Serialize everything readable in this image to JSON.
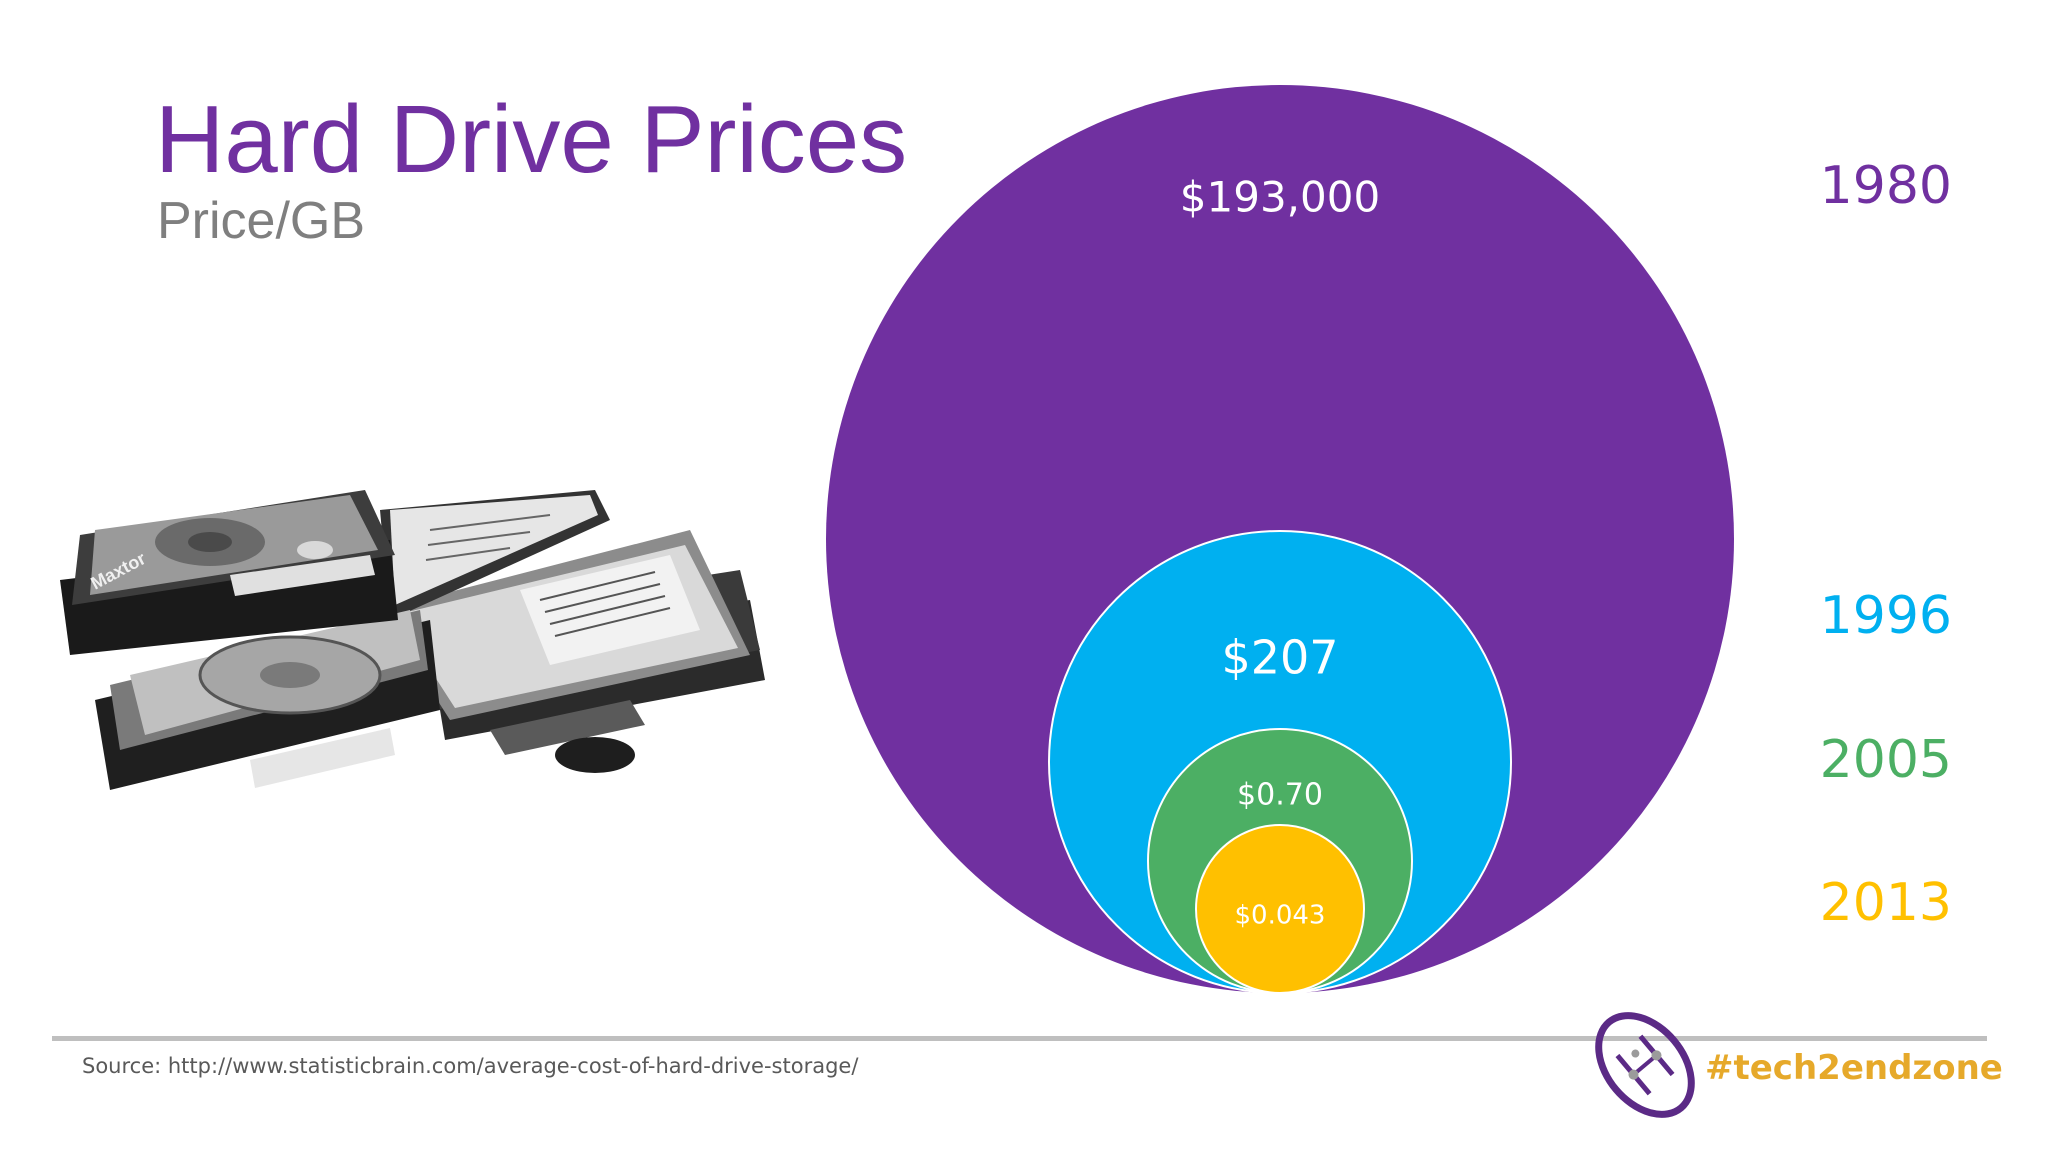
{
  "slide": {
    "title": "Hard Drive Prices",
    "subtitle": "Price/GB",
    "source": "Source: http://www.statisticbrain.com/average-cost-of-hard-drive-storage/",
    "hashtag": "#tech2endzone"
  },
  "chart_data": {
    "type": "nested-bubble",
    "title": "Hard Drive Prices",
    "subtitle": "Price/GB",
    "series": [
      {
        "year": "1980",
        "price_label": "$193,000",
        "color": "#7030a0"
      },
      {
        "year": "1996",
        "price_label": "$207",
        "color": "#00b0f0"
      },
      {
        "year": "2005",
        "price_label": "$0.70",
        "color": "#4caf64"
      },
      {
        "year": "2013",
        "price_label": "$0.043",
        "color": "#ffc000"
      }
    ]
  },
  "icons": {
    "hard_drives": "hard-drives-photo",
    "logo": "football-logo"
  }
}
